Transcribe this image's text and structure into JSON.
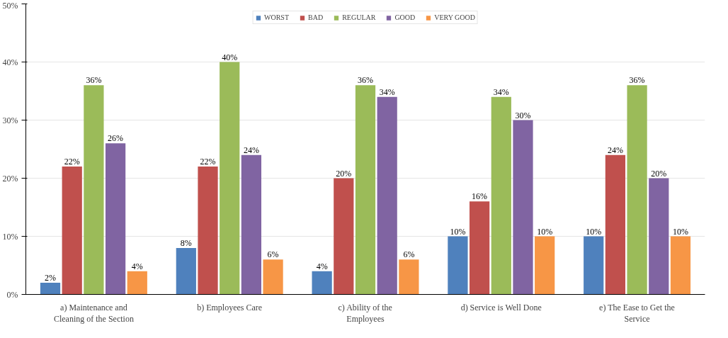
{
  "chart_data": {
    "type": "bar",
    "categories": [
      "a) Maintenance and Cleaning of the Section",
      "b) Employees Care",
      "c) Ability of the Employees",
      "d) Service is Well Done",
      "e) The Ease to Get the Service"
    ],
    "series": [
      {
        "name": "WORST",
        "color": "#4f81bd",
        "values": [
          2,
          8,
          4,
          10,
          10
        ],
        "value_labels": [
          "2%",
          "8%",
          "4%",
          "10%",
          "10%"
        ]
      },
      {
        "name": "BAD",
        "color": "#c0504d",
        "values": [
          22,
          22,
          20,
          16,
          24
        ],
        "value_labels": [
          "22%",
          "22%",
          "20%",
          "16%",
          "24%"
        ]
      },
      {
        "name": "REGULAR",
        "color": "#9bbb59",
        "values": [
          36,
          40,
          36,
          34,
          36
        ],
        "value_labels": [
          "36%",
          "40%",
          "36%",
          "34%",
          "36%"
        ]
      },
      {
        "name": "GOOD",
        "color": "#8064a2",
        "values": [
          26,
          24,
          34,
          30,
          20
        ],
        "value_labels": [
          "26%",
          "24%",
          "34%",
          "30%",
          "20%"
        ]
      },
      {
        "name": "VERY GOOD",
        "color": "#f79646",
        "values": [
          4,
          6,
          6,
          10,
          10
        ],
        "value_labels": [
          "4%",
          "6%",
          "6%",
          "10%",
          "10%"
        ]
      }
    ],
    "ylim": [
      0,
      50
    ],
    "yticks": [
      {
        "value": 0,
        "label": "0%"
      },
      {
        "value": 10,
        "label": "10%"
      },
      {
        "value": 20,
        "label": "20%"
      },
      {
        "value": 30,
        "label": "30%"
      },
      {
        "value": 40,
        "label": "40%"
      },
      {
        "value": 50,
        "label": "50%"
      }
    ],
    "grid": "y",
    "legend": "top"
  }
}
